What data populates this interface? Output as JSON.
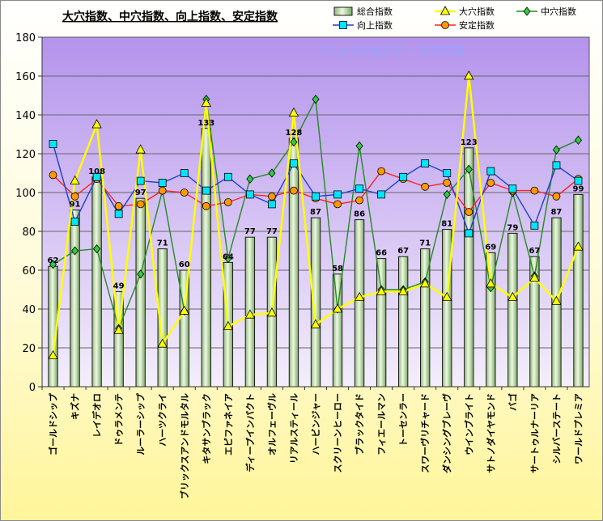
{
  "chart_data": {
    "type": "bar",
    "title": "大穴指数、中穴指数、向上指数、安定指数",
    "watermark": "©Caniの競馬データ研究室",
    "ylim": [
      0,
      180
    ],
    "yticks": [
      0,
      20,
      40,
      60,
      80,
      100,
      120,
      140,
      160,
      180
    ],
    "grid": true,
    "legend_position": "top-right",
    "categories": [
      "ゴールドシップ",
      "キズナ",
      "レイデオロ",
      "ドゥラメンテ",
      "ルーラーシップ",
      "ハーツクライ",
      "ブリックスアンドモルタル",
      "キタサンブラック",
      "エピファネイア",
      "ディープインパクト",
      "オルフェーヴル",
      "リアルスティール",
      "ハービンジャー",
      "スクリーンヒーロー",
      "ブラックタイド",
      "フィエールマン",
      "トーセンラー",
      "スワーヴリチャード",
      "ダンシングブレーヴ",
      "ウインブライト",
      "サトノダイヤモンド",
      "バゴ",
      "サートゥルナーリア",
      "シルバーステート",
      "ワールドプレミア"
    ],
    "series": [
      {
        "name": "総合指数",
        "kind": "bar",
        "color": "#c8e6a8",
        "values": [
          62,
          91,
          108,
          49,
          97,
          71,
          60,
          133,
          64,
          77,
          77,
          128,
          87,
          58,
          86,
          66,
          67,
          71,
          81,
          123,
          69,
          79,
          67,
          87,
          99
        ],
        "labels": [
          "62",
          "91",
          "108",
          "49",
          "97",
          "71",
          "60",
          "133",
          "64",
          "77",
          "77",
          "128",
          "87",
          "58",
          "86",
          "66",
          "67",
          "71",
          "81",
          "123",
          "69",
          "79",
          "67",
          "87",
          "99"
        ]
      },
      {
        "name": "大穴指数",
        "kind": "line",
        "color": "#ffff00",
        "marker": "triangle",
        "values": [
          16,
          106,
          135,
          29,
          122,
          22,
          39,
          146,
          31,
          37,
          38,
          141,
          32,
          40,
          46,
          49,
          49,
          53,
          46,
          160,
          53,
          46,
          56,
          44,
          72
        ]
      },
      {
        "name": "中穴指数",
        "kind": "line",
        "color": "#228b22",
        "marker": "diamond",
        "values": [
          63,
          70,
          71,
          30,
          58,
          101,
          39,
          148,
          66,
          107,
          110,
          126,
          148,
          40,
          124,
          50,
          50,
          54,
          99,
          112,
          51,
          100,
          57,
          122,
          127
        ]
      },
      {
        "name": "向上指数",
        "kind": "line",
        "color": "#1f3fd0",
        "marker": "square",
        "values": [
          125,
          85,
          108,
          89,
          106,
          105,
          110,
          101,
          108,
          99,
          94,
          115,
          98,
          99,
          102,
          99,
          108,
          115,
          110,
          79,
          111,
          102,
          83,
          114,
          106
        ]
      },
      {
        "name": "安定指数",
        "kind": "line",
        "color": "#ff2020",
        "marker": "circle",
        "values": [
          109,
          98,
          107,
          93,
          94,
          101,
          100,
          93,
          95,
          99,
          98,
          101,
          97,
          94,
          96,
          111,
          107,
          103,
          105,
          90,
          105,
          101,
          101,
          98,
          107
        ]
      }
    ]
  }
}
